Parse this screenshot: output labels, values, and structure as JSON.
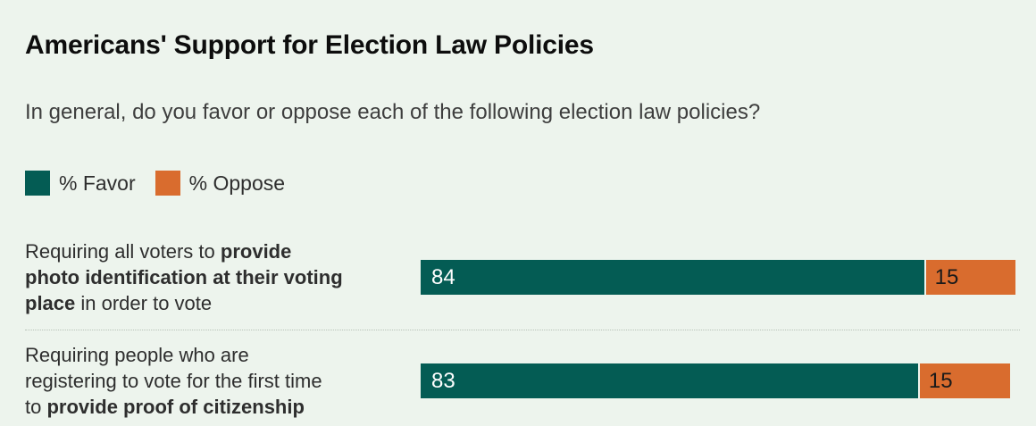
{
  "header": {
    "title": "Americans' Support for Election Law Policies",
    "subtitle": "In general, do you favor or oppose each of the following election law policies?"
  },
  "legend": {
    "items": [
      {
        "label": "% Favor",
        "color": "#045C54"
      },
      {
        "label": "% Oppose",
        "color": "#D96C2E"
      }
    ]
  },
  "chart_data": {
    "type": "bar",
    "orientation": "horizontal",
    "stacked": true,
    "xlim": [
      0,
      100
    ],
    "value_unit": "percent",
    "grid": false,
    "legend_position": "top-left",
    "series": [
      {
        "name": "% Favor",
        "color": "#045C54"
      },
      {
        "name": "% Oppose",
        "color": "#D96C2E"
      }
    ],
    "rows": [
      {
        "category": "Requiring all voters to provide photo identification at their voting place in order to vote",
        "label_lines": [
          [
            {
              "text": "Requiring all voters to ",
              "bold": false
            },
            {
              "text": "provide",
              "bold": true
            }
          ],
          [
            {
              "text": "photo identification at their voting",
              "bold": true
            }
          ],
          [
            {
              "text": "place",
              "bold": true
            },
            {
              "text": " in order to vote",
              "bold": false
            }
          ]
        ],
        "favor": 84,
        "oppose": 15
      },
      {
        "category": "Requiring people who are registering to vote for the first time to provide proof of citizenship",
        "label_lines": [
          [
            {
              "text": "Requiring people who are",
              "bold": false
            }
          ],
          [
            {
              "text": "registering to vote for the first time",
              "bold": false
            }
          ],
          [
            {
              "text": "to ",
              "bold": false
            },
            {
              "text": "provide proof of citizenship",
              "bold": true
            }
          ]
        ],
        "favor": 83,
        "oppose": 15
      }
    ]
  },
  "colors": {
    "background": "#EDF4ED",
    "title_text": "#0D0D0D",
    "subtitle_text": "#3E3E3E",
    "label_text": "#2E2E2E",
    "favor_value_text": "#FFFFFF",
    "oppose_value_text": "#1A1A1A",
    "separator": "#B7C2B7"
  }
}
